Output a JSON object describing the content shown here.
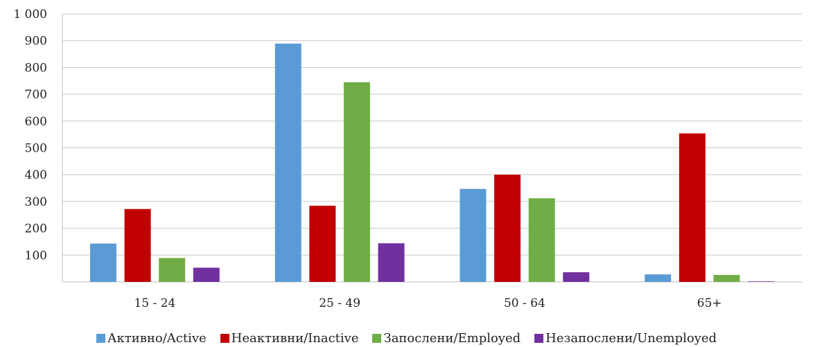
{
  "chart_data": {
    "type": "bar",
    "title": "",
    "xlabel": "",
    "ylabel": "",
    "categories": [
      "15 - 24",
      "25 - 49",
      "50 - 64",
      "65+"
    ],
    "ylim": [
      0,
      1000
    ],
    "yticks": [
      {
        "value": 100,
        "label": "100"
      },
      {
        "value": 200,
        "label": "200"
      },
      {
        "value": 300,
        "label": "300"
      },
      {
        "value": 400,
        "label": "400"
      },
      {
        "value": 500,
        "label": "500"
      },
      {
        "value": 600,
        "label": "600"
      },
      {
        "value": 700,
        "label": "700"
      },
      {
        "value": 800,
        "label": "800"
      },
      {
        "value": 900,
        "label": "900"
      },
      {
        "value": 1000,
        "label": "1 000"
      }
    ],
    "grid": true,
    "legend_position": "bottom",
    "series": [
      {
        "name": "Активно/Active",
        "color": "#5b9bd5",
        "values": [
          143,
          889,
          347,
          28
        ]
      },
      {
        "name": "Неактивни/Inactive",
        "color": "#c00000",
        "values": [
          272,
          284,
          400,
          554
        ]
      },
      {
        "name": "Запослени/Employed",
        "color": "#70ad47",
        "values": [
          89,
          745,
          312,
          26
        ]
      },
      {
        "name": "Незапослени/Unemployed",
        "color": "#7030a0",
        "values": [
          53,
          144,
          36,
          2
        ]
      }
    ]
  }
}
